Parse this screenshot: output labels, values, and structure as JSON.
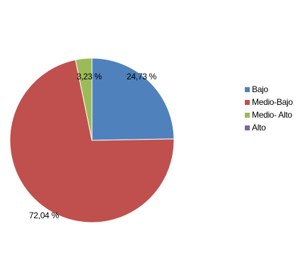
{
  "chart_data": {
    "type": "pie",
    "title": "",
    "categories": [
      "Bajo",
      "Medio-Bajo",
      "Medio- Alto",
      "Alto"
    ],
    "values": [
      24.73,
      72.04,
      3.23,
      0
    ],
    "data_labels": [
      "24,73 %",
      "72,04 %",
      "3,23 %",
      ""
    ],
    "colors": [
      "#4F81BD",
      "#C0504D",
      "#9BBB59",
      "#8064A2"
    ],
    "start_angle_deg": 0,
    "direction": "clockwise",
    "legend_position": "right"
  }
}
